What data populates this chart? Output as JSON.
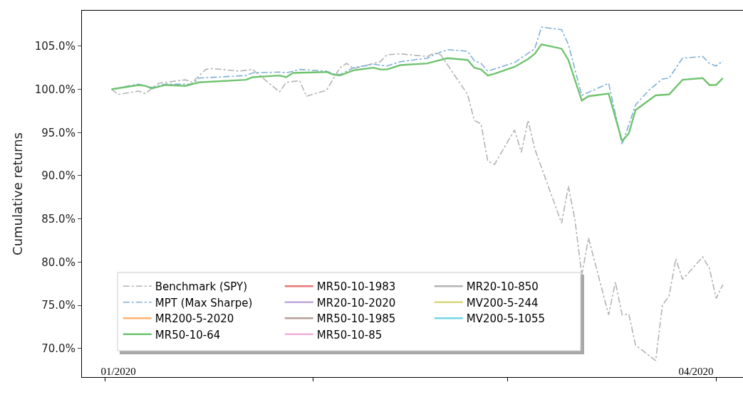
{
  "chart_data": {
    "type": "line",
    "ylabel": "Cumulative returns",
    "xlim": [
      "2019-12-28T14:00",
      "2020-04-05"
    ],
    "xticks": [
      {
        "value": "2020-01-01",
        "label": null
      },
      {
        "value": "2020-02-01",
        "label": null
      },
      {
        "value": "2020-03-01",
        "label": null
      },
      {
        "value": "2020-04-01",
        "label": null
      },
      {
        "value": "2020-01-03",
        "label": "01/2020"
      },
      {
        "value": "2020-03-29",
        "label": "04/2020"
      }
    ],
    "ylim": [
      66.7,
      109.1
    ],
    "yticks": [
      {
        "value": 70,
        "label": "70.0%"
      },
      {
        "value": 75,
        "label": "75.0%"
      },
      {
        "value": 80,
        "label": "80.0%"
      },
      {
        "value": 85,
        "label": "85.0%"
      },
      {
        "value": 90,
        "label": "90.0%"
      },
      {
        "value": 95,
        "label": "95.0%"
      },
      {
        "value": 100,
        "label": "100.0%"
      },
      {
        "value": 105,
        "label": "105.0%"
      }
    ],
    "grid": false,
    "legend": "bottom left",
    "x": [
      "2020-01-02",
      "2020-01-06",
      "2020-01-07",
      "2020-01-08",
      "2020-01-10",
      "2020-01-13",
      "2020-01-15",
      "2020-01-22",
      "2020-01-23",
      "2020-01-27",
      "2020-01-28",
      "2020-01-29",
      "2020-02-03",
      "2020-02-04",
      "2020-02-05",
      "2020-02-07",
      "2020-02-10",
      "2020-02-11",
      "2020-02-12",
      "2020-02-14",
      "2020-02-18",
      "2020-02-19",
      "2020-02-21",
      "2020-02-24",
      "2020-02-25",
      "2020-02-26",
      "2020-02-27",
      "2020-02-28",
      "2020-03-02",
      "2020-03-04",
      "2020-03-05",
      "2020-03-06",
      "2020-03-09",
      "2020-03-10",
      "2020-03-12",
      "2020-03-13",
      "2020-03-16",
      "2020-03-18",
      "2020-03-19",
      "2020-03-20",
      "2020-03-23",
      "2020-03-25",
      "2020-03-27",
      "2020-03-30",
      "2020-03-31",
      "2020-04-01",
      "2020-04-02"
    ],
    "series": [
      {
        "name": "Benchmark (SPY)",
        "color": "#b3b3b3",
        "line_style": "dashdot",
        "x": [
          "2020-01-02",
          "2020-01-03",
          "2020-01-06",
          "2020-01-07",
          "2020-01-09",
          "2020-01-13",
          "2020-01-14",
          "2020-01-16",
          "2020-01-17",
          "2020-01-21",
          "2020-01-23",
          "2020-01-27",
          "2020-01-28",
          "2020-01-30",
          "2020-01-31",
          "2020-02-03",
          "2020-02-05",
          "2020-02-06",
          "2020-02-07",
          "2020-02-11",
          "2020-02-12",
          "2020-02-14",
          "2020-02-18",
          "2020-02-19",
          "2020-02-20",
          "2020-02-24",
          "2020-02-25",
          "2020-02-26",
          "2020-02-27",
          "2020-02-28",
          "2020-03-02",
          "2020-03-03",
          "2020-03-04",
          "2020-03-05",
          "2020-03-09",
          "2020-03-10",
          "2020-03-11",
          "2020-03-12",
          "2020-03-13",
          "2020-03-16",
          "2020-03-17",
          "2020-03-18",
          "2020-03-19",
          "2020-03-20",
          "2020-03-23",
          "2020-03-24",
          "2020-03-25",
          "2020-03-26",
          "2020-03-27",
          "2020-03-30",
          "2020-03-31",
          "2020-04-01",
          "2020-04-02"
        ],
        "values": [
          100.0,
          99.4,
          99.8,
          99.5,
          100.7,
          101.1,
          100.8,
          102.3,
          102.4,
          102.1,
          102.3,
          99.7,
          100.8,
          101.0,
          99.2,
          99.9,
          102.5,
          103.0,
          102.4,
          103.2,
          104.0,
          104.1,
          103.8,
          104.2,
          104.0,
          99.4,
          96.4,
          96.0,
          91.7,
          91.3,
          95.3,
          92.7,
          96.4,
          93.1,
          84.5,
          88.8,
          84.8,
          78.5,
          82.8,
          73.9,
          77.7,
          73.9,
          74.0,
          70.4,
          68.6,
          75.0,
          76.1,
          80.4,
          78.0,
          80.6,
          79.3,
          75.8,
          77.4
        ]
      },
      {
        "name": "MPT (Max Sharpe)",
        "color": "#7fb0d6",
        "line_style": "dashdot",
        "x": [
          "2020-01-02",
          "2020-01-06",
          "2020-01-08",
          "2020-01-10",
          "2020-01-14",
          "2020-01-15",
          "2020-01-22",
          "2020-01-23",
          "2020-01-27",
          "2020-01-28",
          "2020-01-30",
          "2020-02-03",
          "2020-02-04",
          "2020-02-05",
          "2020-02-07",
          "2020-02-10",
          "2020-02-12",
          "2020-02-14",
          "2020-02-18",
          "2020-02-19",
          "2020-02-21",
          "2020-02-24",
          "2020-02-25",
          "2020-02-26",
          "2020-02-27",
          "2020-03-02",
          "2020-03-05",
          "2020-03-06",
          "2020-03-09",
          "2020-03-10",
          "2020-03-12",
          "2020-03-16",
          "2020-03-18",
          "2020-03-20",
          "2020-03-22",
          "2020-03-24",
          "2020-03-25",
          "2020-03-27",
          "2020-03-30",
          "2020-03-31",
          "2020-04-01",
          "2020-04-02"
        ],
        "values": [
          100.0,
          100.6,
          100.2,
          100.6,
          100.6,
          101.3,
          101.6,
          101.9,
          102.0,
          101.9,
          102.3,
          102.1,
          101.8,
          101.7,
          102.5,
          102.9,
          102.7,
          103.2,
          103.6,
          104.0,
          104.6,
          104.4,
          103.3,
          103.0,
          102.1,
          103.1,
          104.7,
          107.2,
          106.9,
          105.2,
          99.3,
          100.7,
          93.6,
          98.2,
          99.9,
          101.2,
          101.3,
          103.6,
          103.8,
          103.0,
          102.7,
          103.3
        ]
      },
      {
        "name": "MR200-5-2020",
        "color": "#ffb170",
        "values": [
          null,
          null,
          null,
          null,
          null,
          null,
          null,
          null,
          null,
          null,
          null,
          null,
          null,
          null,
          null,
          null,
          null,
          null,
          null,
          null,
          null,
          null,
          null,
          null,
          null,
          null,
          null,
          null,
          null,
          null,
          null,
          null,
          null,
          null,
          null,
          null,
          null,
          null,
          null,
          null,
          null,
          null,
          null,
          null,
          null,
          null,
          null
        ]
      },
      {
        "name": "MR50-10-64",
        "color": "#6fc36f",
        "values": [
          100.0,
          100.5,
          100.4,
          100.1,
          100.5,
          100.4,
          100.8,
          101.1,
          101.4,
          101.6,
          101.4,
          101.9,
          102.0,
          101.7,
          101.6,
          102.2,
          102.5,
          102.3,
          102.3,
          102.8,
          103.0,
          103.2,
          103.6,
          103.4,
          102.5,
          102.3,
          101.6,
          101.8,
          102.6,
          103.5,
          104.1,
          105.2,
          104.7,
          103.4,
          98.7,
          99.2,
          99.5,
          94.0,
          94.9,
          97.6,
          99.3,
          99.4,
          101.1,
          101.3,
          100.5,
          100.5,
          101.3
        ]
      },
      {
        "name": "MR50-10-1983",
        "color": "#e87777",
        "values": [
          null,
          null,
          null,
          null,
          null,
          null,
          null,
          null,
          null,
          null,
          null,
          null,
          null,
          null,
          null,
          null,
          null,
          null,
          null,
          null,
          null,
          null,
          null,
          null,
          null,
          null,
          null,
          null,
          null,
          null,
          null,
          null,
          null,
          null,
          null,
          null,
          null,
          null,
          null,
          null,
          null,
          null,
          null,
          null,
          null,
          null,
          null
        ]
      },
      {
        "name": "MR20-10-2020",
        "color": "#c0a6da",
        "values": [
          null,
          null,
          null,
          null,
          null,
          null,
          null,
          null,
          null,
          null,
          null,
          null,
          null,
          null,
          null,
          null,
          null,
          null,
          null,
          null,
          null,
          null,
          null,
          null,
          null,
          null,
          null,
          null,
          null,
          null,
          null,
          null,
          null,
          null,
          null,
          null,
          null,
          null,
          null,
          null,
          null,
          null,
          null,
          null,
          null,
          null,
          null
        ]
      },
      {
        "name": "MR50-10-1985",
        "color": "#b79e94",
        "values": [
          null,
          null,
          null,
          null,
          null,
          null,
          null,
          null,
          null,
          null,
          null,
          null,
          null,
          null,
          null,
          null,
          null,
          null,
          null,
          null,
          null,
          null,
          null,
          null,
          null,
          null,
          null,
          null,
          null,
          null,
          null,
          null,
          null,
          null,
          null,
          null,
          null,
          null,
          null,
          null,
          null,
          null,
          null,
          null,
          null,
          null,
          null
        ]
      },
      {
        "name": "MR50-10-85",
        "color": "#f0b0df",
        "values": [
          null,
          null,
          null,
          null,
          null,
          null,
          null,
          null,
          null,
          null,
          null,
          null,
          null,
          null,
          null,
          null,
          null,
          null,
          null,
          null,
          null,
          null,
          null,
          null,
          null,
          null,
          null,
          null,
          null,
          null,
          null,
          null,
          null,
          null,
          null,
          null,
          null,
          null,
          null,
          null,
          null,
          null,
          null,
          null,
          null,
          null,
          null
        ]
      },
      {
        "name": "MR20-10-850",
        "color": "#b3b3b3",
        "values": [
          null,
          null,
          null,
          null,
          null,
          null,
          null,
          null,
          null,
          null,
          null,
          null,
          null,
          null,
          null,
          null,
          null,
          null,
          null,
          null,
          null,
          null,
          null,
          null,
          null,
          null,
          null,
          null,
          null,
          null,
          null,
          null,
          null,
          null,
          null,
          null,
          null,
          null,
          null,
          null,
          null,
          null,
          null,
          null,
          null,
          null,
          null
        ]
      },
      {
        "name": "MV200-5-244",
        "color": "#d8d87a",
        "values": [
          null,
          null,
          null,
          null,
          null,
          null,
          null,
          null,
          null,
          null,
          null,
          null,
          null,
          null,
          null,
          null,
          null,
          null,
          null,
          null,
          null,
          null,
          null,
          null,
          null,
          null,
          null,
          null,
          null,
          null,
          null,
          null,
          null,
          null,
          null,
          null,
          null,
          null,
          null,
          null,
          null,
          null,
          null,
          null,
          null,
          null,
          null
        ]
      },
      {
        "name": "MV200-5-1055",
        "color": "#74d8e3",
        "values": [
          null,
          null,
          null,
          null,
          null,
          null,
          null,
          null,
          null,
          null,
          null,
          null,
          null,
          null,
          null,
          null,
          null,
          null,
          null,
          null,
          null,
          null,
          null,
          null,
          null,
          null,
          null,
          null,
          null,
          null,
          null,
          null,
          null,
          null,
          null,
          null,
          null,
          null,
          null,
          null,
          null,
          null,
          null,
          null,
          null,
          null,
          null
        ]
      }
    ]
  }
}
